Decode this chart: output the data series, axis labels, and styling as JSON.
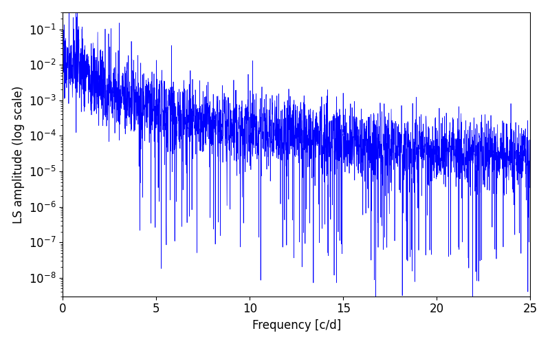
{
  "xlabel": "Frequency [c/d]",
  "ylabel": "LS amplitude (log scale)",
  "line_color": "#0000ff",
  "xlim": [
    0,
    25
  ],
  "ylim": [
    3e-09,
    0.3
  ],
  "freq_max": 25.0,
  "n_points": 3000,
  "seed": 17,
  "figsize": [
    8.0,
    5.0
  ],
  "dpi": 100,
  "linewidth": 0.5
}
